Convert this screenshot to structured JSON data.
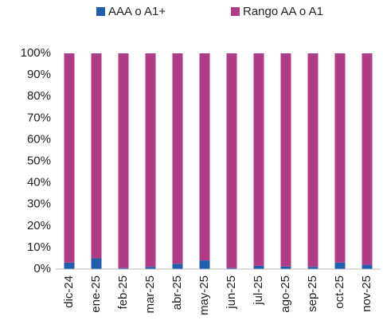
{
  "chart_data": {
    "type": "stacked_bar",
    "categories": [
      "dic-24",
      "ene-25",
      "feb-25",
      "mar-25",
      "abr-25",
      "may-25",
      "jun-25",
      "jul-25",
      "ago-25",
      "sep-25",
      "oct-25",
      "nov-25"
    ],
    "series": [
      {
        "name": "AAA o A1+",
        "color": "#1f5fae",
        "values": [
          3,
          5,
          0.5,
          1,
          2.5,
          4,
          0.5,
          1.5,
          1.2,
          1,
          3,
          2
        ]
      },
      {
        "name": "Rango AA o A1",
        "color": "#b03c87",
        "values": [
          97,
          95,
          99.5,
          99,
          97.5,
          96,
          99.5,
          98.5,
          98.8,
          99,
          97,
          98
        ]
      }
    ],
    "ylim": [
      0,
      100
    ],
    "yticks": [
      {
        "value": 0,
        "label": "0%"
      },
      {
        "value": 10,
        "label": "10%"
      },
      {
        "value": 20,
        "label": "20%"
      },
      {
        "value": 30,
        "label": "30%"
      },
      {
        "value": 40,
        "label": "40%"
      },
      {
        "value": 50,
        "label": "50%"
      },
      {
        "value": 60,
        "label": "60%"
      },
      {
        "value": 70,
        "label": "70%"
      },
      {
        "value": 80,
        "label": "80%"
      },
      {
        "value": 90,
        "label": "90%"
      },
      {
        "value": 100,
        "label": "100%"
      }
    ],
    "grid": false,
    "legend": "top"
  }
}
